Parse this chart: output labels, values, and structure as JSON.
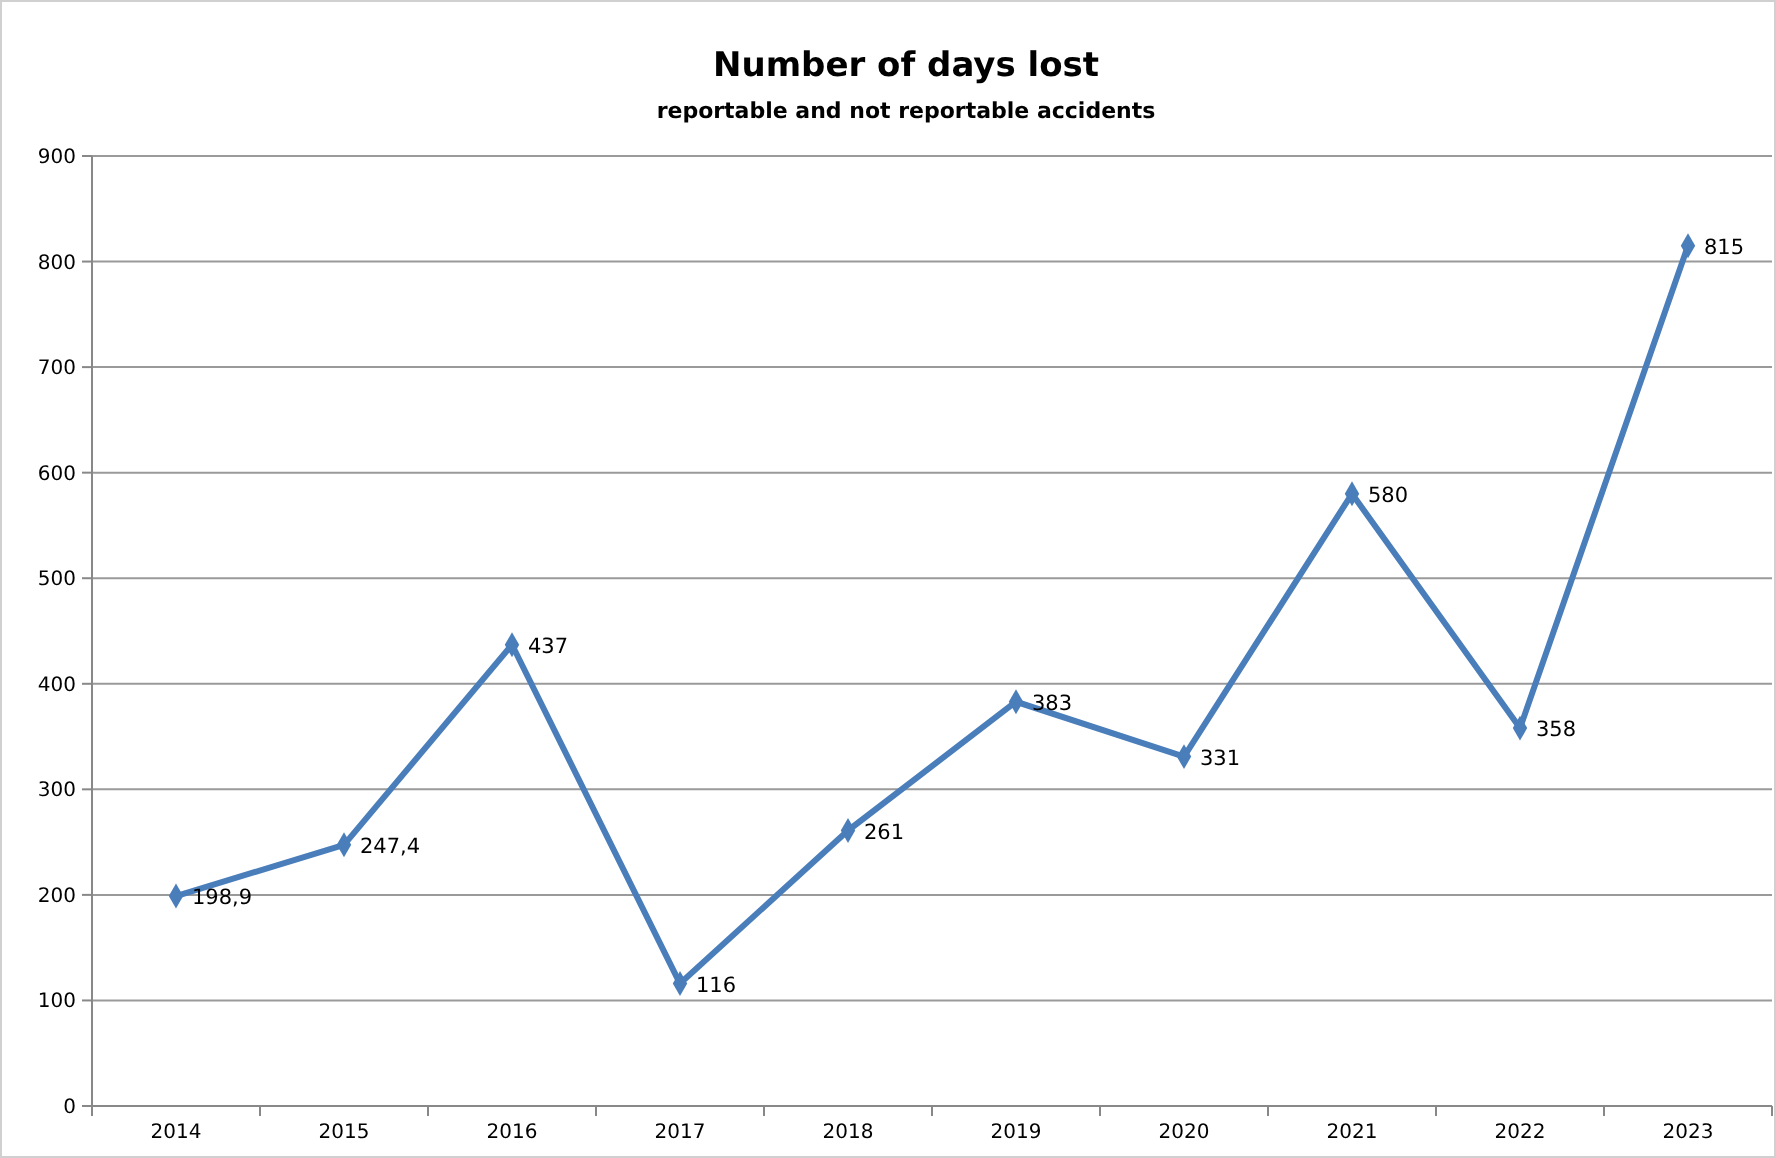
{
  "chart_data": {
    "type": "line",
    "title": "Number of days lost",
    "subtitle": "reportable and not reportable accidents",
    "categories": [
      "2014",
      "2015",
      "2016",
      "2017",
      "2018",
      "2019",
      "2020",
      "2021",
      "2022",
      "2023"
    ],
    "series": [
      {
        "color": "#4a7ebb",
        "values": [
          198.9,
          247.4,
          437,
          116,
          261,
          383,
          331,
          580,
          358,
          815
        ]
      }
    ],
    "value_labels": [
      "198,9",
      "247,4",
      "437",
      "116",
      "261",
      "383",
      "331",
      "580",
      "358",
      "815"
    ],
    "ylim": [
      0,
      900
    ],
    "yticks": [
      0,
      100,
      200,
      300,
      400,
      500,
      600,
      700,
      800,
      900
    ],
    "grid": "y",
    "marker": "diamond",
    "line_style": "solid"
  }
}
